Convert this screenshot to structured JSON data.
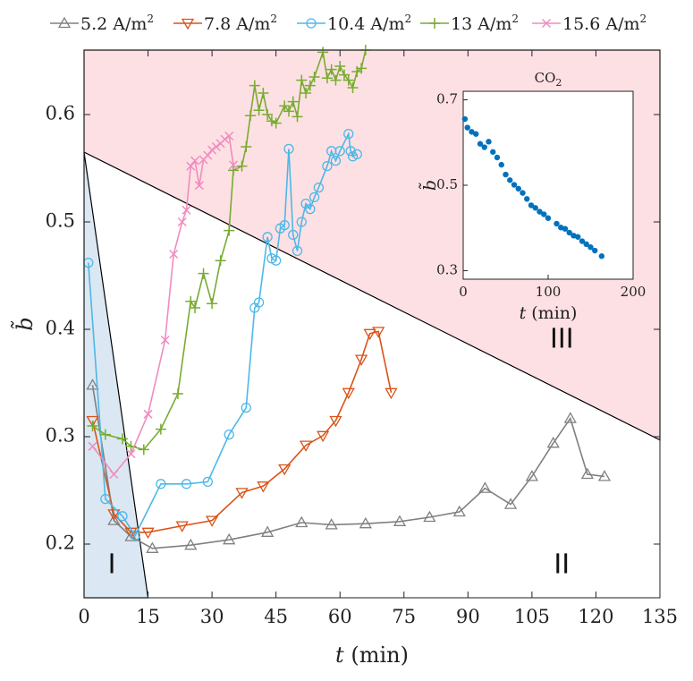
{
  "chart_data": [
    {
      "type": "line",
      "xlabel_var": "t",
      "xlabel_unit": "(min)",
      "ylabel": "b̃",
      "xlim": [
        0,
        135
      ],
      "ylim": [
        0.15,
        0.66
      ],
      "x_ticks": [
        0,
        15,
        30,
        45,
        60,
        75,
        90,
        105,
        120,
        135
      ],
      "y_ticks": [
        0.2,
        0.3,
        0.4,
        0.5,
        0.6
      ],
      "x_tick_labels": [
        "0",
        "15",
        "30",
        "45",
        "60",
        "75",
        "90",
        "105",
        "120",
        "135"
      ],
      "y_tick_labels": [
        "0.2",
        "0.3",
        "0.4",
        "0.5",
        "0.6"
      ],
      "legend_position": "top",
      "regions": [
        {
          "label": "I",
          "color": "#dbe7f3",
          "polygon": [
            [
              0,
              0.15
            ],
            [
              0,
              0.565
            ],
            [
              15,
              0.15
            ]
          ]
        },
        {
          "label": "II",
          "color": "#ffffff"
        },
        {
          "label": "III",
          "color": "#fde0e3",
          "polygon": [
            [
              0,
              0.565
            ],
            [
              0,
              0.66
            ],
            [
              135,
              0.66
            ],
            [
              135,
              0.297
            ]
          ]
        }
      ],
      "region_labels": {
        "I": "I",
        "II": "II",
        "III": "III"
      },
      "region_label_positions": {
        "I": [
          6.5,
          0.18
        ],
        "II": [
          112,
          0.18
        ],
        "III": [
          112,
          0.39
        ]
      },
      "series": [
        {
          "name": "5.2 A/m²",
          "base": "5.2 A/m",
          "sup": "2",
          "color": "#808080",
          "marker": "triangle-up",
          "x": [
            2,
            7,
            11,
            16,
            25,
            34,
            43,
            51,
            58,
            66,
            74,
            81,
            88,
            94,
            100,
            105,
            110,
            114,
            118,
            122
          ],
          "y": [
            0.348,
            0.222,
            0.207,
            0.196,
            0.199,
            0.204,
            0.211,
            0.22,
            0.218,
            0.219,
            0.221,
            0.225,
            0.23,
            0.252,
            0.237,
            0.263,
            0.294,
            0.317,
            0.265,
            0.263
          ]
        },
        {
          "name": "7.8 A/m²",
          "base": "7.8 A/m",
          "sup": "2",
          "color": "#d95319",
          "marker": "triangle-down",
          "x": [
            2,
            7,
            11,
            15,
            23,
            30,
            37,
            42,
            47,
            52,
            56,
            59,
            62,
            65,
            67,
            69,
            72
          ],
          "y": [
            0.315,
            0.228,
            0.211,
            0.211,
            0.217,
            0.222,
            0.248,
            0.254,
            0.27,
            0.292,
            0.301,
            0.315,
            0.341,
            0.372,
            0.396,
            0.398,
            0.341
          ]
        },
        {
          "name": "10.4 A/m²",
          "base": "10.4 A/m",
          "sup": "2",
          "color": "#4db8e8",
          "marker": "circle",
          "x": [
            1,
            5,
            9,
            12,
            18,
            24,
            29,
            34,
            38,
            40,
            41,
            43,
            44,
            45,
            46,
            47,
            48,
            49,
            50,
            51,
            52,
            53,
            54,
            55,
            57,
            58,
            59,
            60,
            62,
            62.5,
            63,
            64
          ],
          "y": [
            0.462,
            0.242,
            0.226,
            0.208,
            0.256,
            0.256,
            0.258,
            0.302,
            0.327,
            0.42,
            0.425,
            0.486,
            0.466,
            0.464,
            0.494,
            0.497,
            0.568,
            0.488,
            0.473,
            0.5,
            0.517,
            0.512,
            0.523,
            0.532,
            0.552,
            0.566,
            0.557,
            0.566,
            0.582,
            0.566,
            0.561,
            0.563
          ]
        },
        {
          "name": "13 A/m²",
          "base": "13 A/m",
          "sup": "2",
          "color": "#77ac30",
          "marker": "plus",
          "x": [
            2,
            5,
            9,
            11,
            14,
            18,
            22,
            25,
            26,
            28,
            30,
            32,
            34,
            35,
            37,
            38,
            39,
            40,
            41,
            42,
            43,
            44,
            45,
            47,
            48,
            49,
            50,
            51,
            52,
            53,
            54,
            56,
            57,
            58,
            59,
            60,
            61,
            62,
            63,
            64,
            65,
            66
          ],
          "y": [
            0.31,
            0.302,
            0.298,
            0.291,
            0.288,
            0.307,
            0.34,
            0.426,
            0.42,
            0.452,
            0.424,
            0.464,
            0.492,
            0.548,
            0.552,
            0.57,
            0.599,
            0.627,
            0.604,
            0.62,
            0.6,
            0.594,
            0.592,
            0.608,
            0.603,
            0.612,
            0.598,
            0.632,
            0.62,
            0.627,
            0.635,
            0.658,
            0.634,
            0.642,
            0.632,
            0.645,
            0.637,
            0.632,
            0.625,
            0.64,
            0.643,
            0.66
          ]
        },
        {
          "name": "15.6 A/m²",
          "base": "15.6 A/m",
          "sup": "2",
          "color": "#f08cc0",
          "marker": "x",
          "x": [
            2,
            7,
            11,
            15,
            19,
            21,
            23,
            24,
            25,
            26,
            27,
            28,
            29,
            30,
            31,
            32,
            33,
            34,
            35
          ],
          "y": [
            0.291,
            0.265,
            0.284,
            0.321,
            0.39,
            0.47,
            0.5,
            0.511,
            0.552,
            0.557,
            0.534,
            0.558,
            0.562,
            0.567,
            0.57,
            0.573,
            0.577,
            0.58,
            0.553
          ]
        }
      ]
    },
    {
      "type": "scatter",
      "title": "CO",
      "title_sub": "2",
      "xlabel_var": "t",
      "xlabel_unit": "(min)",
      "ylabel": "b̃",
      "xlim": [
        0,
        200
      ],
      "ylim": [
        0.28,
        0.72
      ],
      "x_ticks": [
        0,
        100,
        200
      ],
      "y_ticks": [
        0.3,
        0.5,
        0.7
      ],
      "x_tick_labels": [
        "0",
        "100",
        "200"
      ],
      "y_tick_labels": [
        "0.3",
        "0.5",
        "0.7"
      ],
      "color": "#0072bd",
      "x": [
        2,
        5,
        10,
        15,
        20,
        25,
        30,
        35,
        40,
        45,
        50,
        55,
        60,
        65,
        70,
        75,
        80,
        85,
        90,
        95,
        100,
        110,
        115,
        120,
        125,
        130,
        135,
        140,
        145,
        150,
        155,
        163
      ],
      "y": [
        0.655,
        0.635,
        0.625,
        0.62,
        0.597,
        0.589,
        0.602,
        0.578,
        0.565,
        0.548,
        0.525,
        0.512,
        0.501,
        0.492,
        0.482,
        0.468,
        0.453,
        0.447,
        0.438,
        0.432,
        0.423,
        0.41,
        0.401,
        0.398,
        0.389,
        0.382,
        0.379,
        0.369,
        0.362,
        0.355,
        0.347,
        0.334
      ]
    }
  ]
}
